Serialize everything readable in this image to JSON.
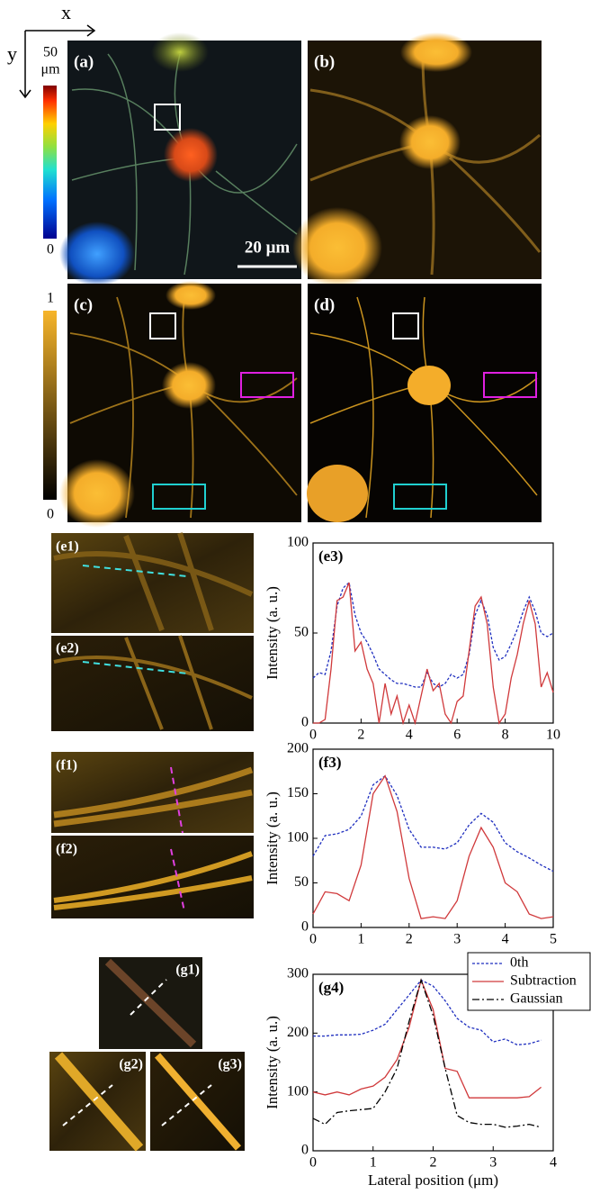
{
  "figure": {
    "axis_x": "x",
    "axis_y": "y",
    "colorbar1_top": "50",
    "colorbar1_unit": "μm",
    "colorbar1_bottom": "0",
    "colorbar2_top": "1",
    "colorbar2_bottom": "0",
    "scale_bar": "20 μm",
    "panel_labels": [
      "(a)",
      "(b)",
      "(c)",
      "(d)",
      "(e1)",
      "(e2)",
      "(f1)",
      "(f2)",
      "(g1)",
      "(g2)",
      "(g3)"
    ]
  },
  "chart_data": [
    {
      "type": "line",
      "panel_label": "(e3)",
      "y_label": "Intensity (a. u.)",
      "x": [
        0,
        0.25,
        0.5,
        0.75,
        1,
        1.25,
        1.5,
        1.75,
        2,
        2.25,
        2.5,
        2.75,
        3,
        3.25,
        3.5,
        3.75,
        4,
        4.25,
        4.5,
        4.75,
        5,
        5.25,
        5.5,
        5.75,
        6,
        6.25,
        6.5,
        6.75,
        7,
        7.25,
        7.5,
        7.75,
        8,
        8.25,
        8.5,
        8.75,
        9,
        9.25,
        9.5,
        9.75,
        10
      ],
      "series": [
        {
          "color": "#1f2fbf",
          "style": "dotted",
          "values": [
            25,
            28,
            27,
            40,
            65,
            75,
            78,
            60,
            50,
            45,
            38,
            30,
            27,
            24,
            22,
            22,
            21,
            20,
            20,
            28,
            22,
            20,
            22,
            27,
            25,
            27,
            38,
            60,
            68,
            60,
            42,
            35,
            37,
            44,
            52,
            62,
            70,
            62,
            50,
            48,
            50
          ]
        },
        {
          "color": "#d0393b",
          "style": "solid",
          "values": [
            0,
            0,
            2,
            30,
            68,
            70,
            78,
            40,
            45,
            30,
            22,
            0,
            22,
            5,
            15,
            0,
            10,
            0,
            15,
            30,
            18,
            22,
            5,
            0,
            12,
            15,
            40,
            65,
            70,
            55,
            20,
            0,
            5,
            25,
            38,
            55,
            68,
            55,
            20,
            28,
            17
          ]
        }
      ],
      "xlim": [
        0,
        10
      ],
      "ylim": [
        0,
        100
      ],
      "xticks": [
        0,
        2,
        4,
        6,
        8,
        10
      ],
      "yticks": [
        0,
        50,
        100
      ]
    },
    {
      "type": "line",
      "panel_label": "(f3)",
      "y_label": "Intensity (a. u.)",
      "x": [
        0,
        0.25,
        0.5,
        0.75,
        1,
        1.25,
        1.5,
        1.75,
        2,
        2.25,
        2.5,
        2.75,
        3,
        3.25,
        3.5,
        3.75,
        4,
        4.25,
        4.5,
        4.75,
        5
      ],
      "series": [
        {
          "color": "#1f2fbf",
          "style": "dotted",
          "values": [
            80,
            103,
            105,
            110,
            125,
            160,
            170,
            148,
            110,
            90,
            90,
            88,
            95,
            115,
            128,
            118,
            95,
            85,
            78,
            70,
            63
          ]
        },
        {
          "color": "#d0393b",
          "style": "solid",
          "values": [
            15,
            40,
            38,
            30,
            70,
            150,
            170,
            130,
            55,
            10,
            12,
            10,
            30,
            80,
            112,
            90,
            50,
            40,
            15,
            10,
            12
          ]
        }
      ],
      "xlim": [
        0,
        5
      ],
      "ylim": [
        0,
        200
      ],
      "xticks": [
        0,
        1,
        2,
        3,
        4,
        5
      ],
      "yticks": [
        0,
        50,
        100,
        150,
        200
      ]
    },
    {
      "type": "line",
      "panel_label": "(g4)",
      "y_label": "Intensity (a. u.)",
      "x_label": "Lateral position (μm)",
      "x": [
        0,
        0.2,
        0.4,
        0.6,
        0.8,
        1,
        1.2,
        1.4,
        1.6,
        1.8,
        2,
        2.2,
        2.4,
        2.6,
        2.8,
        3,
        3.2,
        3.4,
        3.6,
        3.8
      ],
      "series": [
        {
          "name": "0th",
          "color": "#1f2fbf",
          "style": "dotted",
          "values": [
            195,
            195,
            197,
            197,
            198,
            205,
            215,
            240,
            265,
            290,
            280,
            255,
            225,
            210,
            205,
            185,
            190,
            180,
            182,
            188
          ]
        },
        {
          "name": "Subtraction",
          "color": "#d0393b",
          "style": "solid",
          "values": [
            100,
            95,
            100,
            95,
            105,
            110,
            125,
            155,
            210,
            290,
            240,
            140,
            135,
            90,
            90,
            90,
            90,
            90,
            92,
            108
          ]
        },
        {
          "name": "Gaussian",
          "color": "#000000",
          "style": "dashdot",
          "values": [
            55,
            45,
            65,
            68,
            70,
            72,
            100,
            140,
            220,
            290,
            230,
            140,
            60,
            48,
            45,
            45,
            40,
            42,
            45,
            40
          ]
        }
      ],
      "xlim": [
        0,
        4
      ],
      "ylim": [
        0,
        300
      ],
      "xticks": [
        0,
        1,
        2,
        3,
        4
      ],
      "yticks": [
        0,
        100,
        200,
        300
      ],
      "legend": "upper right"
    }
  ]
}
